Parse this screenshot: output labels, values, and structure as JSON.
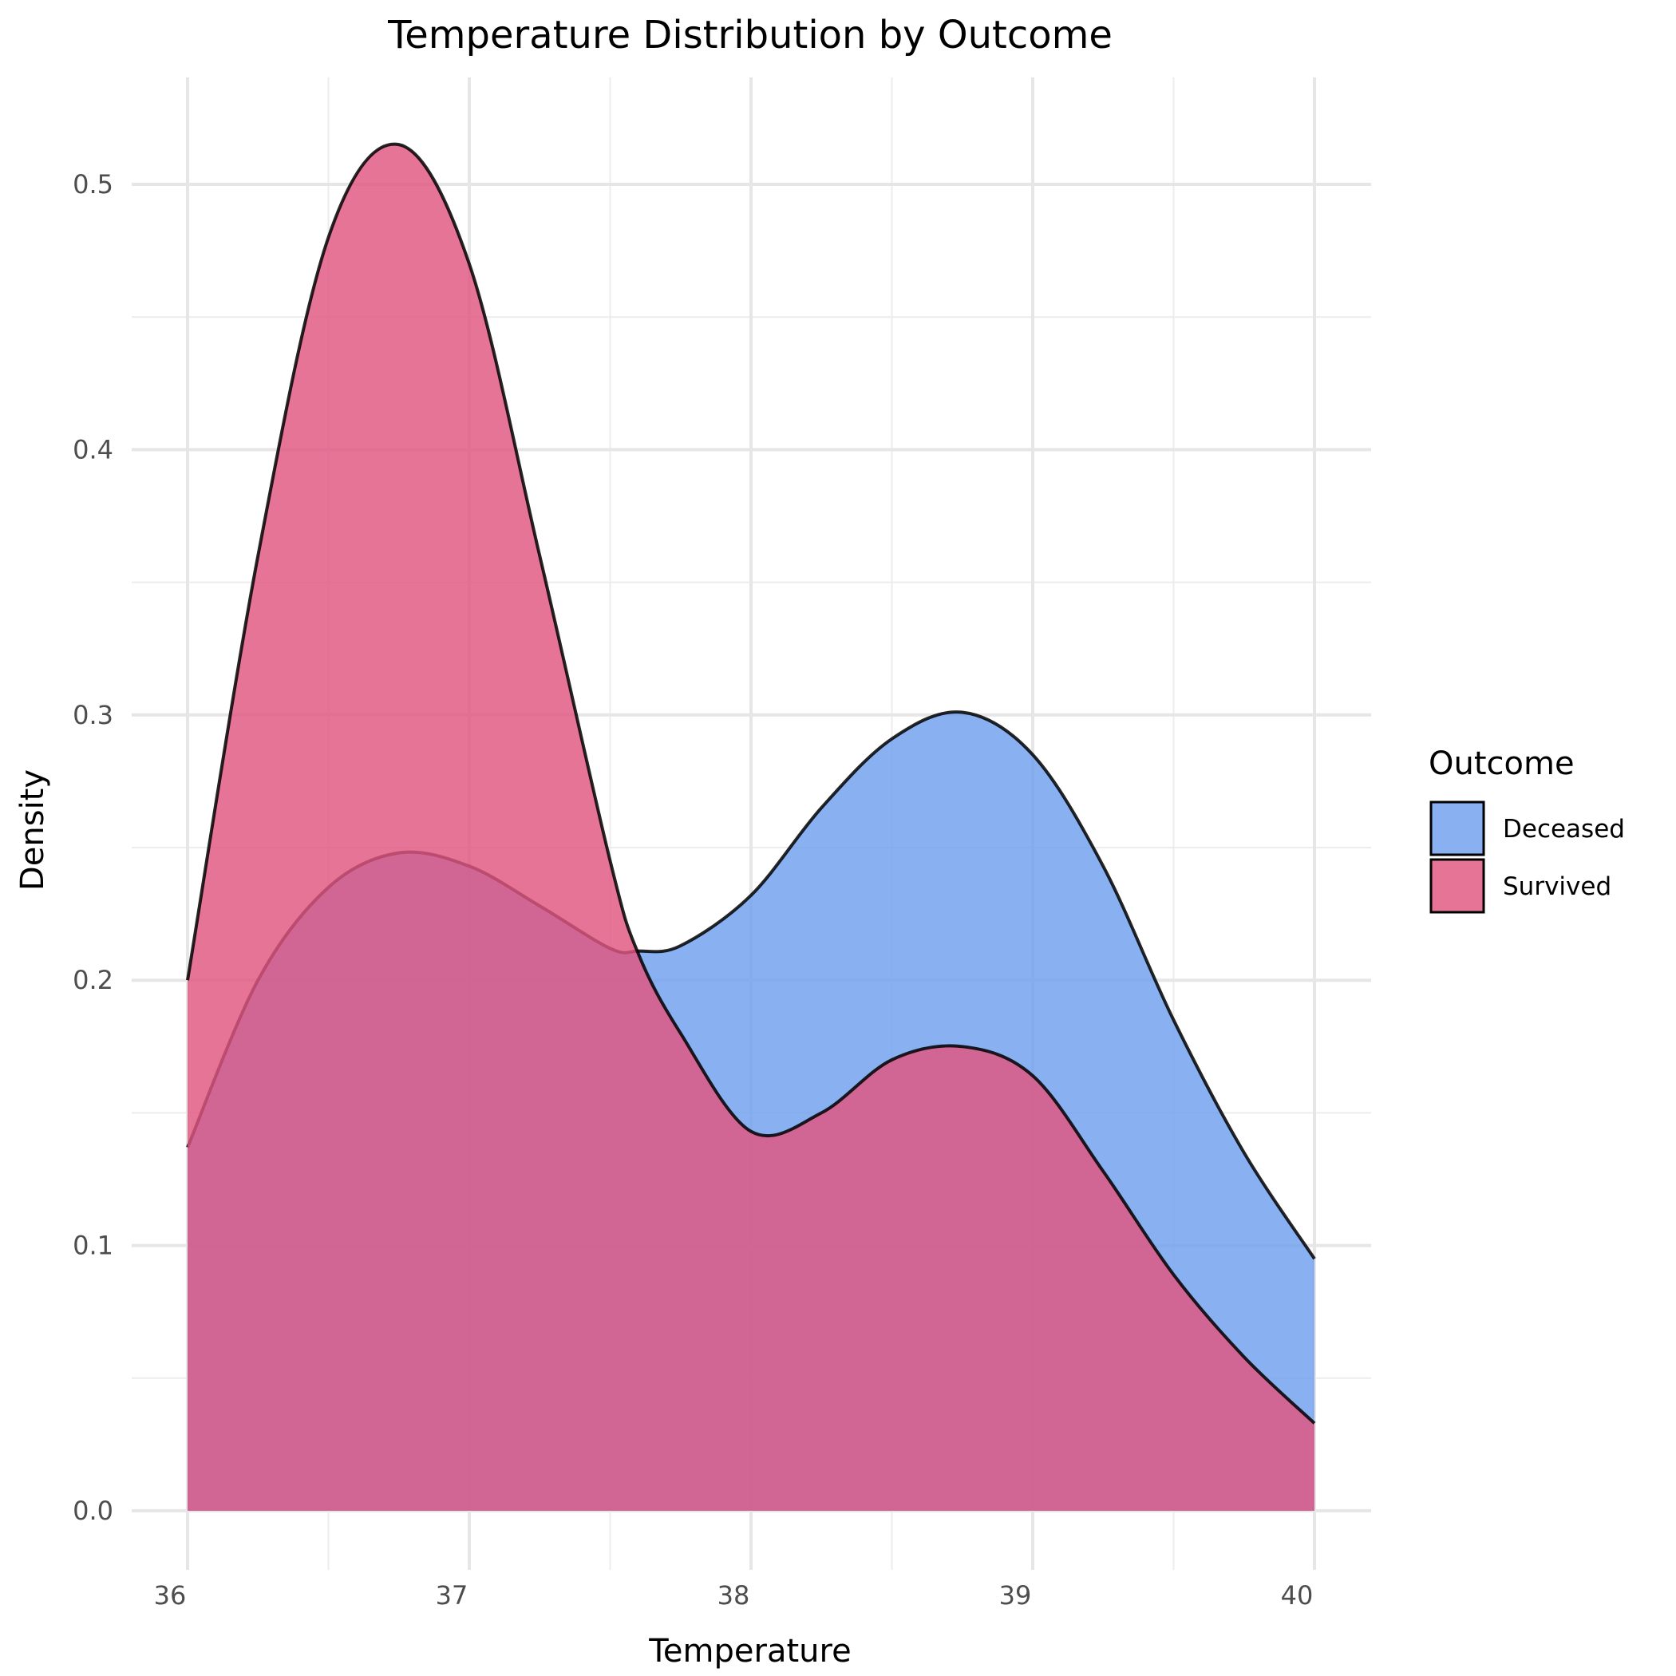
{
  "chart_data": {
    "type": "area",
    "title": "Temperature Distribution by Outcome",
    "xlabel": "Temperature",
    "ylabel": "Density",
    "xlim": [
      36,
      40
    ],
    "ylim": [
      0,
      0.5
    ],
    "x_ticks": [
      "36",
      "37",
      "38",
      "39",
      "40"
    ],
    "y_ticks": [
      "0.0",
      "0.1",
      "0.2",
      "0.3",
      "0.4",
      "0.5"
    ],
    "grid": true,
    "legend": {
      "title": "Outcome",
      "position": "right"
    },
    "x": [
      36.0,
      36.25,
      36.5,
      36.75,
      37.0,
      37.25,
      37.5,
      37.6,
      37.75,
      38.0,
      38.25,
      38.5,
      38.75,
      39.0,
      39.25,
      39.5,
      39.75,
      40.0
    ],
    "series": [
      {
        "name": "Deceased",
        "color": "#6fa0ee",
        "values": [
          0.137,
          0.2,
          0.235,
          0.248,
          0.243,
          0.228,
          0.212,
          0.211,
          0.213,
          0.232,
          0.265,
          0.291,
          0.301,
          0.285,
          0.243,
          0.185,
          0.135,
          0.095
        ]
      },
      {
        "name": "Survived",
        "color": "#e05580",
        "values": [
          0.2,
          0.36,
          0.48,
          0.515,
          0.47,
          0.36,
          0.245,
          0.21,
          0.18,
          0.143,
          0.15,
          0.17,
          0.175,
          0.164,
          0.128,
          0.089,
          0.058,
          0.033
        ]
      }
    ]
  }
}
